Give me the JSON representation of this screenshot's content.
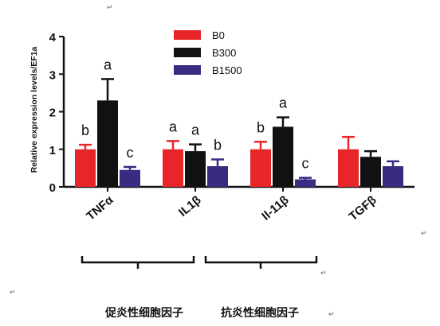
{
  "chart_data": {
    "type": "bar",
    "ylabel": "Relative expression levels/EF1a",
    "ylim": [
      0,
      4
    ],
    "yticks": [
      "0",
      "1",
      "2",
      "3",
      "4"
    ],
    "categories": [
      "TNFα",
      "IL1β",
      "Il-11β",
      "TGFβ"
    ],
    "series": [
      {
        "name": "B0",
        "color": "#e8262a",
        "values": [
          1.0,
          1.0,
          1.0,
          1.0
        ],
        "errors": [
          0.12,
          0.22,
          0.2,
          0.33
        ],
        "labels": [
          "b",
          "a",
          "b",
          ""
        ]
      },
      {
        "name": "B300",
        "color": "#111111",
        "values": [
          2.3,
          0.95,
          1.6,
          0.8
        ],
        "errors": [
          0.57,
          0.18,
          0.25,
          0.15
        ],
        "labels": [
          "a",
          "a",
          "a",
          ""
        ]
      },
      {
        "name": "B1500",
        "color": "#3a2a80",
        "values": [
          0.45,
          0.55,
          0.2,
          0.55
        ],
        "errors": [
          0.08,
          0.18,
          0.04,
          0.13
        ],
        "labels": [
          "c",
          "b",
          "c",
          ""
        ]
      }
    ],
    "legend_position": "top-center"
  },
  "captions": {
    "pro_inflammatory": "促炎性细胞因子",
    "anti_inflammatory": "抗炎性细胞因子"
  },
  "paragraph_mark": "↵"
}
